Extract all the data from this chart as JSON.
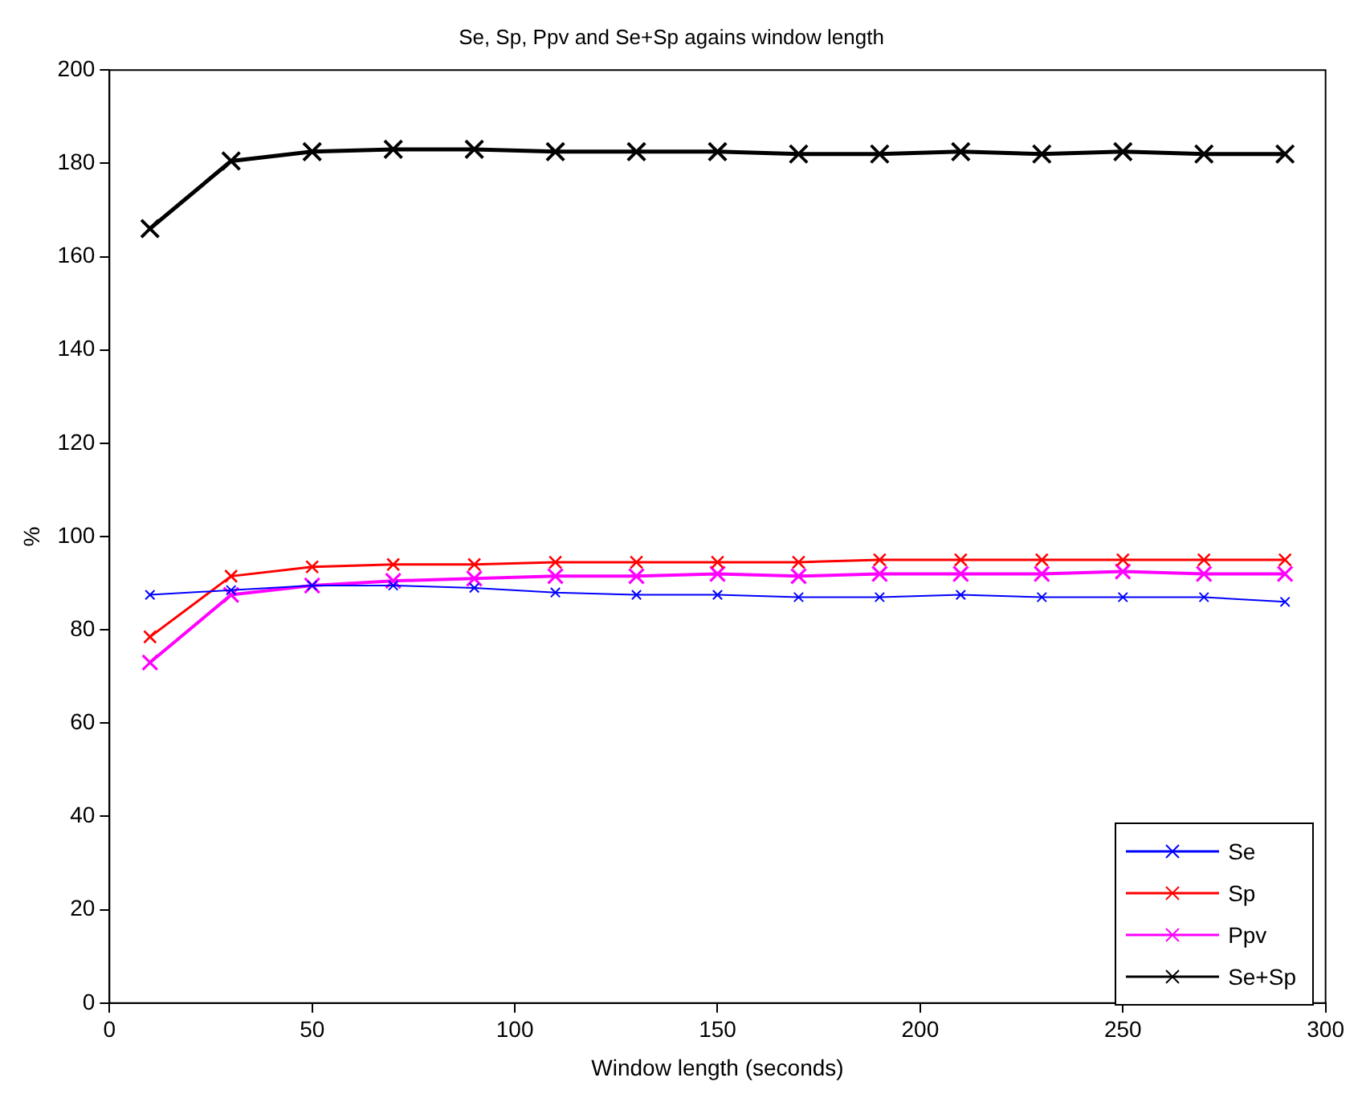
{
  "chart_data": {
    "type": "line",
    "title": "Se, Sp, Ppv and Se+Sp agains window length",
    "xlabel": "Window length (seconds)",
    "ylabel": "%",
    "x": [
      10,
      30,
      50,
      70,
      90,
      110,
      130,
      150,
      170,
      190,
      210,
      230,
      250,
      270,
      290
    ],
    "series": [
      {
        "name": "Se",
        "color": "#0000ff",
        "values": [
          87.5,
          88.5,
          89.5,
          89.5,
          89,
          88,
          87.5,
          87.5,
          87,
          87,
          87.5,
          87,
          87,
          87,
          86
        ]
      },
      {
        "name": "Sp",
        "color": "#ff0000",
        "values": [
          78.5,
          91.5,
          93.5,
          94,
          94,
          94.5,
          94.5,
          94.5,
          94.5,
          95,
          95,
          95,
          95,
          95,
          95
        ]
      },
      {
        "name": "Ppv",
        "color": "#ff00ff",
        "values": [
          73,
          87.5,
          89.5,
          90.5,
          91,
          91.5,
          91.5,
          92,
          91.5,
          92,
          92,
          92,
          92.5,
          92,
          92
        ]
      },
      {
        "name": "Se+Sp",
        "color": "#000000",
        "values": [
          166,
          180.5,
          182.5,
          183,
          183,
          182.5,
          182.5,
          182.5,
          182,
          182,
          182.5,
          182,
          182.5,
          182,
          182
        ]
      }
    ],
    "xlim": [
      0,
      300
    ],
    "xticks": [
      0,
      50,
      100,
      150,
      200,
      250,
      300
    ],
    "ylim": [
      0,
      200
    ],
    "yticks": [
      0,
      20,
      40,
      60,
      80,
      100,
      120,
      140,
      160,
      180,
      200
    ],
    "grid": false,
    "legend": "bottom right",
    "marker": "cross",
    "line_style": "solid"
  }
}
